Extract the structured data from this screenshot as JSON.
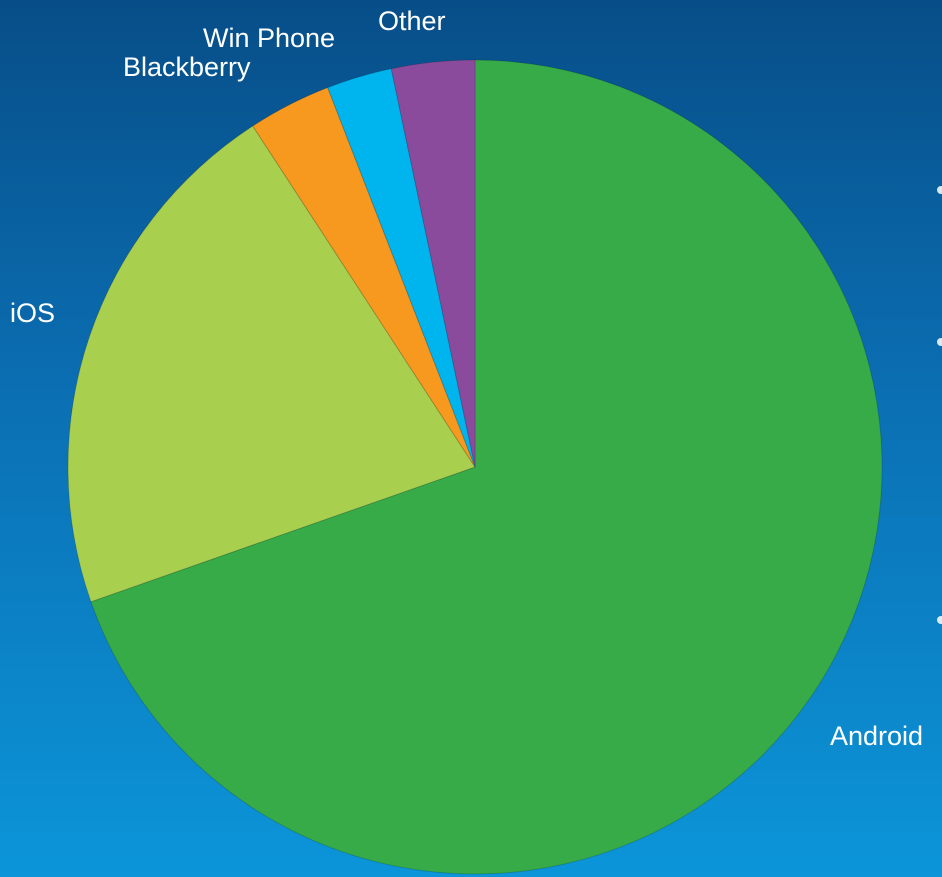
{
  "chart_data": {
    "type": "pie",
    "start_angle": "12 o'clock",
    "direction": "clockwise",
    "categories": [
      "Android",
      "iOS",
      "Blackberry",
      "Win Phone",
      "Other"
    ],
    "values": [
      69.7,
      21.2,
      3.3,
      2.6,
      3.3
    ],
    "unit": "%",
    "legend": "none",
    "colors": [
      "#37ab47",
      "#a9cf4f",
      "#f7981f",
      "#00b4ee",
      "#8a4b9c"
    ]
  }
}
